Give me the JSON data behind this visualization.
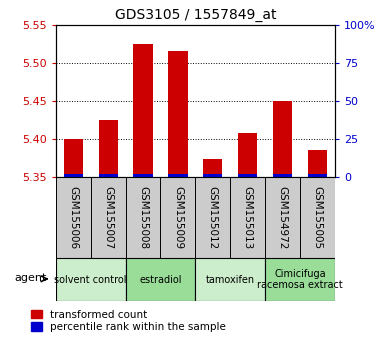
{
  "title": "GDS3105 / 1557849_at",
  "samples": [
    "GSM155006",
    "GSM155007",
    "GSM155008",
    "GSM155009",
    "GSM155012",
    "GSM155013",
    "GSM154972",
    "GSM155005"
  ],
  "red_values": [
    5.4,
    5.425,
    5.525,
    5.515,
    5.373,
    5.408,
    5.45,
    5.385
  ],
  "blue_values": [
    2.0,
    2.0,
    3.0,
    3.0,
    2.0,
    2.0,
    2.0,
    2.0
  ],
  "ylim_left": [
    5.35,
    5.55
  ],
  "ylim_right": [
    0,
    100
  ],
  "yticks_left": [
    5.35,
    5.4,
    5.45,
    5.5,
    5.55
  ],
  "yticks_right": [
    0,
    25,
    50,
    75,
    100
  ],
  "ytick_labels_right": [
    "0",
    "25",
    "50",
    "75",
    "100%"
  ],
  "groups": [
    {
      "label": "solvent control",
      "samples": [
        0,
        1
      ],
      "color": "#cceecc"
    },
    {
      "label": "estradiol",
      "samples": [
        2,
        3
      ],
      "color": "#99dd99"
    },
    {
      "label": "tamoxifen",
      "samples": [
        4,
        5
      ],
      "color": "#cceecc"
    },
    {
      "label": "Cimicifuga\nracemosa extract",
      "samples": [
        6,
        7
      ],
      "color": "#99dd99"
    }
  ],
  "bar_width": 0.55,
  "red_color": "#cc0000",
  "blue_color": "#0000cc",
  "left_tick_color": "#cc0000",
  "right_tick_color": "#0000cc",
  "sample_bg_color": "#cccccc",
  "legend_red": "transformed count",
  "legend_blue": "percentile rank within the sample"
}
